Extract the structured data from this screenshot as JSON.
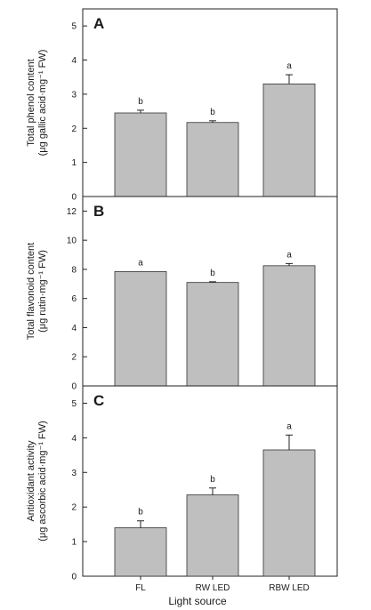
{
  "figure": {
    "xlabel": "Light source",
    "bar_color": "#bfbfbf",
    "edge_color": "#333333",
    "axis_color": "#222222"
  },
  "chart_data": [
    {
      "type": "bar",
      "panel": "A",
      "ylabel_lines": [
        "Total phenol content",
        "(μg gallic acid·mg⁻¹ FW)"
      ],
      "categories": [
        "FL",
        "RW LED",
        "RBW LED"
      ],
      "values": [
        2.45,
        2.17,
        3.3
      ],
      "errors": [
        0.08,
        0.05,
        0.27
      ],
      "letters": [
        "b",
        "b",
        "a"
      ],
      "ylim": [
        0,
        5.5
      ],
      "yticks": [
        0,
        1,
        2,
        3,
        4,
        5
      ]
    },
    {
      "type": "bar",
      "panel": "B",
      "ylabel_lines": [
        "Total flavonoid content",
        "(μg rutin·mg⁻¹ FW)"
      ],
      "categories": [
        "FL",
        "RW LED",
        "RBW LED"
      ],
      "values": [
        7.85,
        7.1,
        8.25
      ],
      "errors": [
        0.0,
        0.05,
        0.15
      ],
      "letters": [
        "a",
        "b",
        "a"
      ],
      "ylim": [
        0,
        13
      ],
      "yticks": [
        0,
        2,
        4,
        6,
        8,
        10,
        12
      ]
    },
    {
      "type": "bar",
      "panel": "C",
      "ylabel_lines": [
        "Antioxidant activity",
        "(μg ascorbic acid·mg⁻¹ FW)"
      ],
      "categories": [
        "FL",
        "RW LED",
        "RBW LED"
      ],
      "values": [
        1.4,
        2.35,
        3.65
      ],
      "errors": [
        0.2,
        0.2,
        0.43
      ],
      "letters": [
        "b",
        "b",
        "a"
      ],
      "ylim": [
        0,
        5.5
      ],
      "yticks": [
        0,
        1,
        2,
        3,
        4,
        5
      ]
    }
  ]
}
